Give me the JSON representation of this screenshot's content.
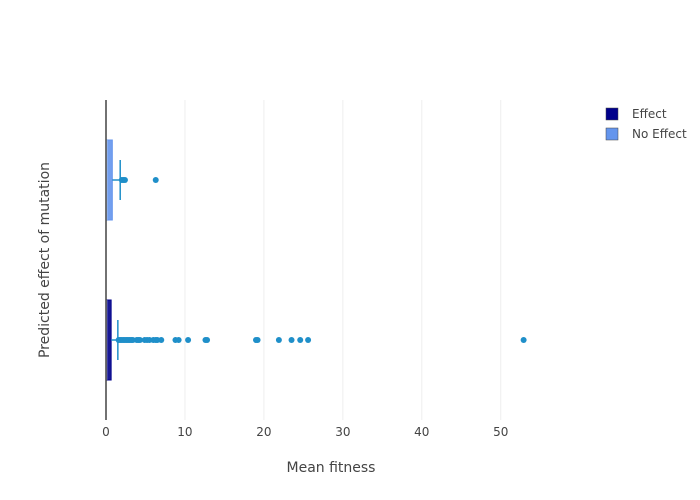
{
  "chart_data": {
    "type": "box",
    "orientation": "horizontal",
    "title": "",
    "xlabel": "Mean fitness",
    "ylabel": "Predicted effect of mutation",
    "xlim": [
      0,
      57
    ],
    "xticks": [
      0,
      10,
      20,
      30,
      40,
      50
    ],
    "grid": true,
    "legend_position": "top-right",
    "series": [
      {
        "name": "Effect",
        "color": "#00008b",
        "box": {
          "q1": 0.0,
          "median": 0.1,
          "q3": 0.65,
          "whisker_high": 1.5
        },
        "outliers": [
          1.6,
          1.8,
          2.0,
          2.2,
          2.4,
          2.6,
          2.8,
          3.0,
          3.2,
          3.4,
          3.9,
          4.1,
          4.3,
          4.9,
          5.2,
          5.5,
          6.0,
          6.3,
          6.5,
          7.0,
          8.8,
          9.2,
          10.4,
          12.6,
          12.8,
          19.0,
          19.2,
          21.9,
          23.5,
          24.6,
          25.6,
          52.9
        ]
      },
      {
        "name": "No Effect",
        "color": "#6495ed",
        "box": {
          "q1": 0.0,
          "median": 0.1,
          "q3": 0.8,
          "whisker_high": 1.8
        },
        "outliers": [
          2.0,
          2.2,
          2.4,
          6.3
        ]
      }
    ]
  }
}
